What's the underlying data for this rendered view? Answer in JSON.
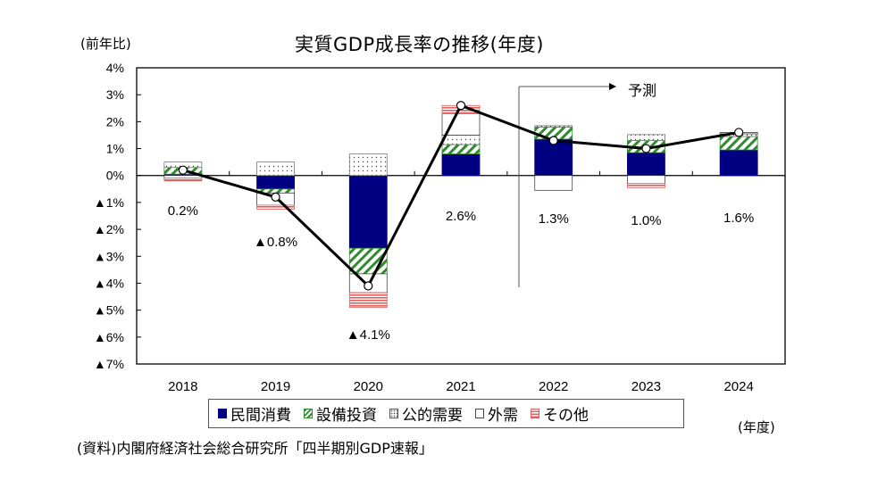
{
  "chart_data": {
    "type": "bar",
    "stacked": true,
    "title": "実質GDP成長率の推移(年度)",
    "ylabel": "(前年比)",
    "xlabel": "(年度)",
    "ylim": [
      -7,
      4
    ],
    "yticks": [
      4,
      3,
      2,
      1,
      0,
      -1,
      -2,
      -3,
      -4,
      -5,
      -6,
      -7
    ],
    "ytick_labels": [
      "4%",
      "3%",
      "2%",
      "1%",
      "0%",
      "▲1%",
      "▲2%",
      "▲3%",
      "▲4%",
      "▲5%",
      "▲6%",
      "▲7%"
    ],
    "categories": [
      "2018",
      "2019",
      "2020",
      "2021",
      "2022",
      "2023",
      "2024"
    ],
    "series": [
      {
        "name": "民間消費",
        "color": "#000080",
        "pattern": "solid",
        "values": [
          0.05,
          -0.5,
          -2.7,
          0.8,
          1.35,
          0.85,
          0.95
        ]
      },
      {
        "name": "設備投資",
        "color": "#2e8b2e",
        "pattern": "hatch",
        "values": [
          0.25,
          -0.15,
          -0.95,
          0.35,
          0.45,
          0.45,
          0.5
        ]
      },
      {
        "name": "公的需要",
        "color": "#555555",
        "pattern": "dots",
        "values": [
          0.2,
          0.5,
          0.8,
          0.35,
          0.05,
          0.22,
          0.1
        ]
      },
      {
        "name": "外需",
        "color": "#444444",
        "pattern": "white",
        "values": [
          -0.1,
          -0.45,
          -0.7,
          0.8,
          -0.55,
          -0.3,
          0.05
        ]
      },
      {
        "name": "その他",
        "color": "#e06060",
        "pattern": "lines",
        "values": [
          -0.1,
          -0.15,
          -0.55,
          0.3,
          0.0,
          -0.15,
          0.0
        ]
      }
    ],
    "line": {
      "name": "実質GDP成長率",
      "values": [
        0.2,
        -0.8,
        -4.1,
        2.6,
        1.3,
        1.0,
        1.6
      ]
    },
    "data_labels": [
      "0.2%",
      "▲0.8%",
      "▲4.1%",
      "2.6%",
      "1.3%",
      "1.0%",
      "1.6%"
    ],
    "forecast_annotation": {
      "label": "予測",
      "starts_after": "2021"
    },
    "legend_position": "bottom",
    "grid": false
  },
  "labels": {
    "title": "実質GDP成長率の推移(年度)",
    "yunit": "(前年比)",
    "xunit": "(年度)",
    "source": "(資料)内閣府経済社会総合研究所「四半期別GDP速報」",
    "forecast": "予測"
  }
}
